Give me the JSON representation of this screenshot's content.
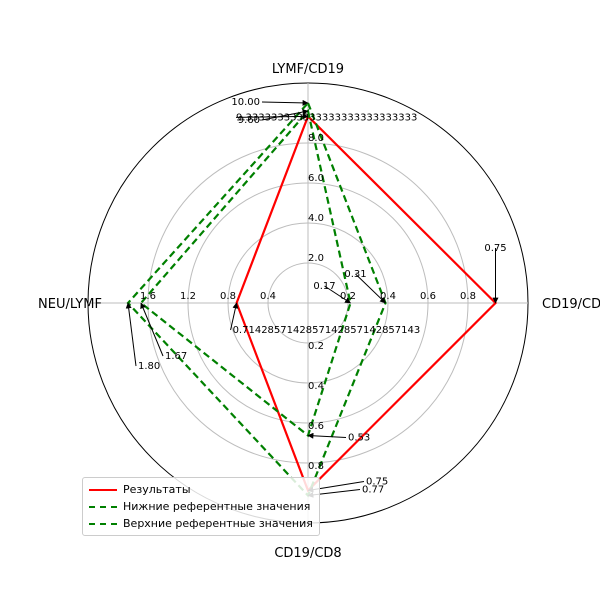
{
  "chart_data": {
    "type": "radar",
    "axes": [
      "LYMF/CD19",
      "CD19/CD4",
      "CD19/CD8",
      "NEU/LYMF"
    ],
    "axis_ranges": [
      [
        0,
        10
      ],
      [
        0,
        0.8
      ],
      [
        0,
        0.8
      ],
      [
        0,
        2
      ]
    ],
    "tick_labels": [
      [
        "2.0",
        "4.0",
        "6.0",
        "8.0"
      ],
      [
        "0.2",
        "0.4",
        "0.6",
        "0.8"
      ],
      [
        "0.2",
        "0.4",
        "0.6",
        "0.8"
      ],
      [
        "0.4",
        "0.8",
        "1.2",
        "1.6"
      ]
    ],
    "series": [
      {
        "name": "Результаты",
        "color": "#ff0000",
        "dash": "solid",
        "values": [
          9.333333333333334,
          0.75,
          0.75,
          0.7142857142857143
        ],
        "labels": [
          "9.333333333333333333333333333",
          "0.75",
          "0.75",
          "0.7142857142857142857142857143"
        ]
      },
      {
        "name": "Нижние референтные значения",
        "color": "#008000",
        "dash": "dashed",
        "values": [
          9.6,
          0.17,
          0.53,
          1.67
        ],
        "labels": [
          "9.60",
          "0.17",
          "0.53",
          "1.67"
        ]
      },
      {
        "name": "Верхние референтные значения",
        "color": "#008000",
        "dash": "dashed",
        "values": [
          10.0,
          0.31,
          0.77,
          1.8
        ],
        "labels": [
          "10.00",
          "0.31",
          "0.77",
          "1.80"
        ]
      }
    ],
    "grid": true,
    "legend_position": "bottom-left"
  }
}
